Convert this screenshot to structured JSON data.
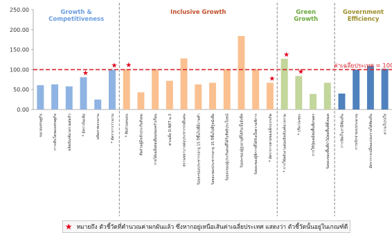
{
  "chart_data": {
    "type": "bar",
    "ylim": [
      0,
      250
    ],
    "yticks": [
      "0.00",
      "50.00",
      "100.00",
      "150.00",
      "200.00",
      "250.00"
    ],
    "grid": false,
    "reference_line": {
      "value": 100,
      "label": "ค่าเฉลี่ยประเทศ = 100",
      "color": "#d9232d"
    },
    "groups": [
      {
        "name": "Growth & Competitiveness",
        "color": "#6a9de0",
        "bar_color": "#8fb4e3"
      },
      {
        "name": "Inclusive Growth",
        "color": "#c0502a",
        "bar_color": "#fac090"
      },
      {
        "name": "Green Growth",
        "color": "#6aa83a",
        "bar_color": "#c3d69b"
      },
      {
        "name": "Government Efficiency",
        "color": "#9c8f2c",
        "bar_color": "#4f81bd"
      }
    ],
    "bars": [
      {
        "label": "ขนาดเศรษฐกิจ",
        "value": 61,
        "group": 0,
        "star": false
      },
      {
        "label": "การเติบโตของเศรษฐกิจ",
        "value": 63,
        "group": 0,
        "star": false
      },
      {
        "label": "ผลิตภัณฑ์มวลรวมต่อหัว",
        "value": 58,
        "group": 0,
        "star": false
      },
      {
        "label": "* อัตราเงินเฟ้อ",
        "value": 81,
        "group": 0,
        "star": true
      },
      {
        "label": "ผลิตภาพแรงงาน",
        "value": 25,
        "group": 0,
        "star": false
      },
      {
        "label": "* อัตราการว่างงาน",
        "value": 100,
        "group": 0,
        "star": true
      },
      {
        "label": "* สัดส่วนคนจน",
        "value": 101,
        "group": 1,
        "star": true
      },
      {
        "label": "สัดส่วนผู้มีหลักประกันสังคม",
        "value": 43,
        "group": 1,
        "star": false
      },
      {
        "label": "รายได้เฉลี่ยต่อเดือนของครัวเรือน",
        "value": 101,
        "group": 1,
        "star": false
      },
      {
        "label": "ค่าเฉลี่ย O-NET ม.3",
        "value": 72,
        "group": 1,
        "star": false
      },
      {
        "label": "สถานพยาบาลต่อประชากรหมื่นคน",
        "value": 128,
        "group": 1,
        "star": false
      },
      {
        "label": "ร้อยละของประชากรอายุ 15 ปีขึ้นไปที่มีงานทำ",
        "value": 63,
        "group": 1,
        "star": false
      },
      {
        "label": "ร้อยละของประชากรอายุ 15 ปีขึ้นไปที่รู้หนังสือ",
        "value": 67,
        "group": 1,
        "star": false
      },
      {
        "label": "ร้อยละของผู้ประกันตนที่ได้รับสิทธิประโยชน์",
        "value": 101,
        "group": 1,
        "star": false
      },
      {
        "label": "ร้อยละของผู้สูงอายุที่ได้รับเบี้ยยังชีพ",
        "value": 184,
        "group": 1,
        "star": false
      },
      {
        "label": "ร้อยละของผู้พิการที่ได้รับเบี้ยความพิการ",
        "value": 101,
        "group": 1,
        "star": false
      },
      {
        "label": "* อัตราการตายของเด็กแรกเกิด",
        "value": 67,
        "group": 1,
        "star": true
      },
      {
        "label": "* การใช้พลังงานต่อผลิตภัณฑ์มวลรวม",
        "value": 127,
        "group": 2,
        "star": true
      },
      {
        "label": "* ปริมาณขยะ",
        "value": 84,
        "group": 2,
        "star": true
      },
      {
        "label": "การใช้ปุ๋ยเคมีต่อพื้นที่เกษตร",
        "value": 39,
        "group": 2,
        "star": false
      },
      {
        "label": "ร้อยละของพื้นที่ป่าไม้ต่อพื้นที่ทั้งหมด",
        "value": 67,
        "group": 2,
        "star": false
      },
      {
        "label": "การจัดเก็บภาษีท้องถิ่น",
        "value": 40,
        "group": 3,
        "star": false
      },
      {
        "label": "การเบิกจ่ายงบประมาณ",
        "value": 100,
        "group": 3,
        "star": false
      },
      {
        "label": "อัตราการเปลี่ยนแปลงรายได้ท้องถิ่น",
        "value": 109,
        "group": 3,
        "star": false
      },
      {
        "label": "ความโปร่งใส",
        "value": 102,
        "group": 3,
        "star": false
      }
    ],
    "footnote": "หมายถึง ตัวชี้วัดที่คำนวณค่าผกผันแล้ว ซึ่งหากอยู่เหนือเส้นค่าเฉลี่ยประเทศ แสดงว่า ตัวชี้วัดนั้นอยู่ในเกณฑ์ดี"
  }
}
